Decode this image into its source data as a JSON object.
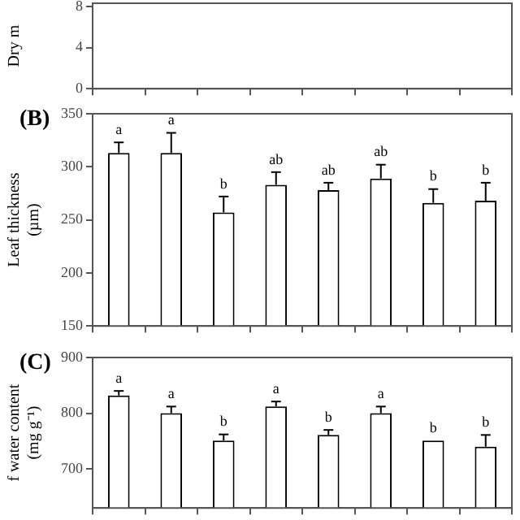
{
  "chart_data": [
    {
      "type": "bar",
      "ylabel": "Dry m",
      "categories": [
        null,
        null,
        null,
        null,
        null,
        null,
        null,
        null
      ],
      "values": [
        null,
        null,
        null,
        null,
        null,
        null,
        null,
        null
      ],
      "color": "#ffffff",
      "ylim": [
        0,
        8.3
      ],
      "yticks": [
        0,
        4,
        8
      ],
      "tick_labels": "y",
      "grid": false,
      "legend": false
    },
    {
      "type": "bar",
      "title": "(B)",
      "ylabel": "Leaf thickness\n(µm)",
      "categories": [
        null,
        null,
        null,
        null,
        null,
        null,
        null,
        null
      ],
      "values": [
        313,
        313,
        257,
        283,
        278,
        289,
        266,
        268
      ],
      "errors": [
        [
          313,
          323
        ],
        [
          313,
          332
        ],
        [
          257,
          272
        ],
        [
          283,
          295
        ],
        [
          278,
          285
        ],
        [
          289,
          302
        ],
        [
          266,
          279
        ],
        [
          268,
          285
        ]
      ],
      "color": "#ffffff",
      "ylim": [
        150,
        350
      ],
      "yticks": [
        150,
        200,
        250,
        300,
        350
      ],
      "tick_labels": "y",
      "grid": false,
      "legend": false,
      "annotations": [
        "a",
        "a",
        "b",
        "ab",
        "ab",
        "ab",
        "b",
        "b"
      ]
    },
    {
      "type": "bar",
      "title": "(C)",
      "ylabel": "f water content\n(mg g⁻¹)",
      "categories": [
        null,
        null,
        null,
        null,
        null,
        null,
        null,
        null
      ],
      "values": [
        832,
        800,
        751,
        812,
        761,
        800,
        751,
        740
      ],
      "errors": [
        [
          832,
          840
        ],
        [
          800,
          812
        ],
        [
          751,
          762
        ],
        [
          812,
          821
        ],
        [
          761,
          770
        ],
        [
          800,
          812
        ],
        null,
        [
          740,
          761
        ]
      ],
      "color": "#ffffff",
      "ylim": [
        630,
        900
      ],
      "yticks": [
        700,
        800,
        900
      ],
      "tick_labels": "y",
      "grid": false,
      "legend": false,
      "annotations": [
        "a",
        "a",
        "b",
        "a",
        "b",
        "a",
        "b",
        "b"
      ]
    }
  ]
}
